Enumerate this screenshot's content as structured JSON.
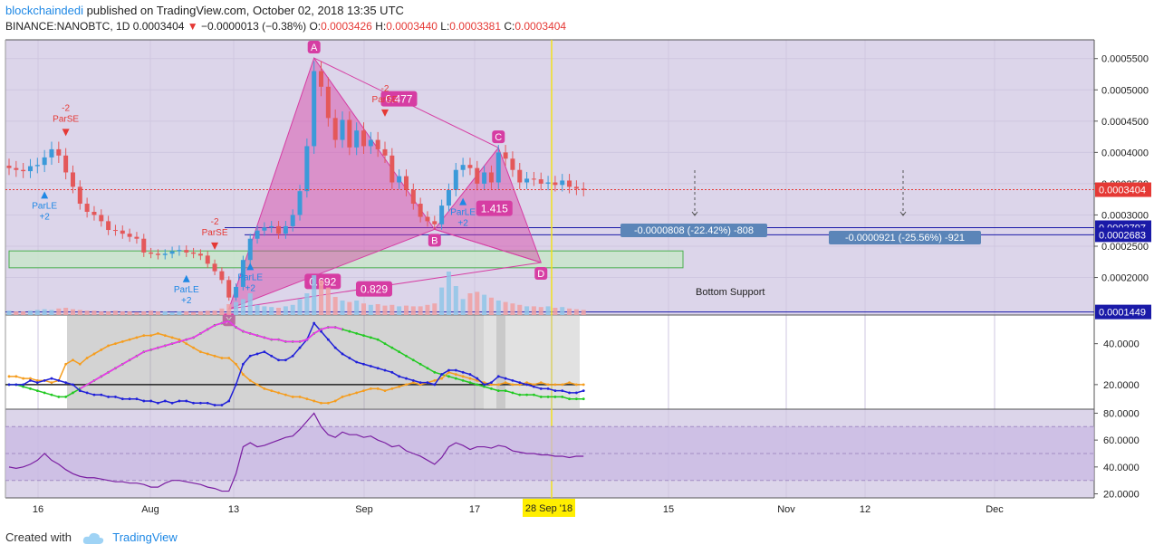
{
  "header": {
    "author": "blockchaindedi",
    "published": "published on TradingView.com, October 02, 2018 13:35 UTC",
    "symbol": "BINANCE:NANOBTC, 1D",
    "last": "0.0003404",
    "change": "−0.0000013 (−0.38%)",
    "o_label": "O:",
    "o": "0.0003426",
    "h_label": "H:",
    "h": "0.0003440",
    "l_label": "L:",
    "l": "0.0003381",
    "c_label": "C:",
    "c": "0.0003404"
  },
  "footer": {
    "created_with": "Created with",
    "brand": "TradingView"
  },
  "colors": {
    "up": "#3b9ad9",
    "down": "#e4585a",
    "pattern": "#d63da3",
    "background": "#dcd5ea",
    "price_line": "#e53935"
  },
  "chart_data": {
    "type": "candlestick",
    "price_axis": {
      "min": 0.00014,
      "max": 0.00058,
      "ticks": [
        "0.0005500",
        "0.0005000",
        "0.0004500",
        "0.0004000",
        "0.0003500",
        "0.0003000",
        "0.0002500",
        "0.0002000"
      ]
    },
    "x_ticks": [
      "16",
      "Aug",
      "13",
      "Sep",
      "17",
      "15",
      "Nov",
      "12",
      "Dec"
    ],
    "cursor_date": "28 Sep '18",
    "price_tags": [
      {
        "label": "0.0003404",
        "value": 0.0003404,
        "color": "#e53935"
      },
      {
        "label": "0.0002797",
        "value": 0.0002797,
        "color": "#1a1aa8"
      },
      {
        "label": "0.0002683",
        "value": 0.0002683,
        "color": "#1a1aa8"
      },
      {
        "label": "0.0001449",
        "value": 0.0001449,
        "color": "#1a1aa8"
      }
    ],
    "horizontal_lines": [
      0.0002797,
      0.0002683,
      0.0001449
    ],
    "support_zone": {
      "top": 0.0002425,
      "bottom": 0.0002155,
      "label": "Bottom Support"
    },
    "measure_labels": [
      "-0.0000808 (-22.42%) -808",
      "-0.0000921 (-25.56%) -921"
    ],
    "pattern_points": [
      {
        "label": "X",
        "day": 31,
        "price": 0.0001497
      },
      {
        "label": "A",
        "day": 43,
        "price": 0.000551
      },
      {
        "label": "B",
        "day": 60,
        "price": 0.000277
      },
      {
        "label": "C",
        "day": 69,
        "price": 0.0004075
      },
      {
        "label": "D",
        "day": 75,
        "price": 0.000224
      }
    ],
    "ratios": [
      "0.477",
      "1.415",
      "0.692",
      "0.829"
    ],
    "signals": [
      {
        "label": "ParLE",
        "sub": "+2",
        "type": "long",
        "day": 5
      },
      {
        "label": "ParSE",
        "sub": "-2",
        "type": "short",
        "day": 8
      },
      {
        "label": "ParLE",
        "sub": "+2",
        "type": "long",
        "day": 25
      },
      {
        "label": "ParSE",
        "sub": "-2",
        "type": "short",
        "day": 29
      },
      {
        "label": "ParLE",
        "sub": "+2",
        "type": "long",
        "day": 34
      },
      {
        "label": "ParSE",
        "sub": "-2",
        "type": "short",
        "day": 53
      },
      {
        "label": "ParLE",
        "sub": "+2",
        "type": "long",
        "day": 64
      }
    ],
    "candles_close": [
      0.000375,
      0.000372,
      0.00037,
      0.000378,
      0.00038,
      0.000392,
      0.000405,
      0.000395,
      0.000368,
      0.000345,
      0.000318,
      0.000305,
      0.0003,
      0.00029,
      0.000276,
      0.000275,
      0.00027,
      0.000265,
      0.000262,
      0.00024,
      0.000238,
      0.000236,
      0.000238,
      0.000242,
      0.000244,
      0.00024,
      0.000238,
      0.000235,
      0.000222,
      0.00021,
      0.000196,
      0.000168,
      0.000185,
      0.000228,
      0.000262,
      0.000275,
      0.00028,
      0.000282,
      0.00027,
      0.000282,
      0.0003,
      0.000338,
      0.00041,
      0.00053,
      0.000505,
      0.000455,
      0.00042,
      0.000452,
      0.000408,
      0.000435,
      0.00041,
      0.00042,
      0.000405,
      0.000395,
      0.000352,
      0.000362,
      0.00034,
      0.000318,
      0.000297,
      0.00029,
      0.000285,
      0.000315,
      0.00034,
      0.000372,
      0.00038,
      0.000375,
      0.00035,
      0.000368,
      0.000352,
      0.0004,
      0.00039,
      0.000372,
      0.000352,
      0.000358,
      0.000357,
      0.00035,
      0.000352,
      0.000348,
      0.000355,
      0.000345,
      0.000342,
      0.00034
    ],
    "volume": [
      6,
      5,
      5,
      6,
      7,
      8,
      7,
      9,
      10,
      8,
      7,
      6,
      6,
      5,
      5,
      6,
      5,
      5,
      4,
      5,
      6,
      5,
      5,
      4,
      5,
      5,
      4,
      5,
      6,
      6,
      9,
      15,
      18,
      22,
      30,
      14,
      12,
      11,
      10,
      12,
      14,
      22,
      30,
      55,
      48,
      38,
      25,
      20,
      18,
      20,
      16,
      14,
      15,
      13,
      14,
      12,
      13,
      12,
      12,
      14,
      16,
      38,
      60,
      40,
      22,
      30,
      32,
      28,
      24,
      20,
      18,
      16,
      14,
      12,
      12,
      11,
      12,
      10,
      11,
      9,
      8,
      7
    ],
    "dmi_panel": {
      "ticks": [
        "40.0000",
        "20.0000"
      ],
      "min": 8,
      "max": 54
    },
    "rsi_panel": {
      "ticks": [
        "80.0000",
        "60.0000",
        "40.0000",
        "20.0000"
      ],
      "min": 17,
      "max": 83,
      "band_top": 70,
      "band_bottom": 30
    }
  }
}
